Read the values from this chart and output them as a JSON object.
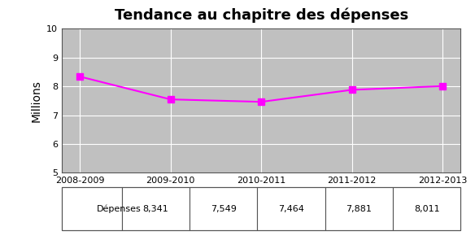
{
  "title": "Tendance au chapitre des dépenses",
  "ylabel": "Millions",
  "categories": [
    "2008-2009",
    "2009-2010",
    "2010-2011",
    "2011-2012",
    "2012-2013"
  ],
  "series_name": "Dépenses",
  "values": [
    8.341,
    7.549,
    7.464,
    7.881,
    8.011
  ],
  "raw_values": [
    "8,341",
    "7,549",
    "7,464",
    "7,881",
    "8,011"
  ],
  "line_color": "#FF00FF",
  "marker": "s",
  "linewidth": 1.5,
  "markersize": 6,
  "ylim": [
    5,
    10
  ],
  "yticks": [
    5,
    6,
    7,
    8,
    9,
    10
  ],
  "plot_bg_color": "#C0C0C0",
  "outer_bg_color": "#FFFFFF",
  "grid_color": "#FFFFFF",
  "title_fontsize": 13,
  "tick_fontsize": 8,
  "ylabel_fontsize": 10,
  "table_fontsize": 8,
  "border_color": "#555555"
}
